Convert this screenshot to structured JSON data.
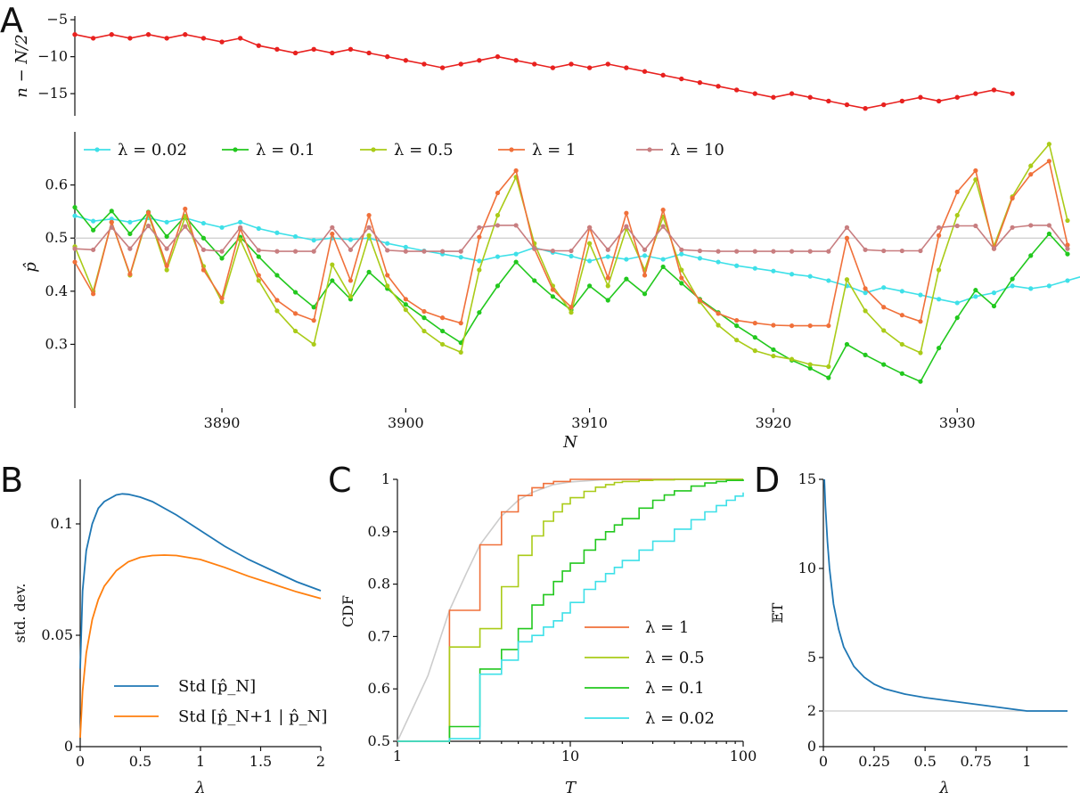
{
  "chart_data": [
    {
      "panel": "A",
      "type": "line",
      "title": "",
      "xlabel": "N",
      "ylabel": "n − N/2",
      "xlim": [
        3882,
        3936
      ],
      "ylim": [
        -18,
        -4.5
      ],
      "yticks": [
        -5,
        -10,
        -15
      ],
      "ytick_labels": [
        "−5",
        "−10",
        "−15"
      ],
      "series": [
        {
          "name": "n − N/2",
          "color": "#e8211f",
          "values": [
            -7,
            -7.5,
            -7,
            -7.5,
            -7,
            -7.5,
            -7,
            -7.5,
            -8,
            -7.5,
            -8.5,
            -9,
            -9.5,
            -9,
            -9.5,
            -9,
            -9.5,
            -10,
            -10.5,
            -11,
            -11.5,
            -11,
            -10.5,
            -10,
            -10.5,
            -11,
            -11.5,
            -11,
            -11.5,
            -11,
            -11.5,
            -12,
            -12.5,
            -13,
            -13.5,
            -14,
            -14.5,
            -15,
            -15.5,
            -15,
            -15.5,
            -16,
            -16.5,
            -17,
            -16.5,
            -16,
            -15.5,
            -16,
            -15.5,
            -15,
            -14.5,
            -15
          ]
        }
      ]
    },
    {
      "panel": "A",
      "type": "line",
      "xlabel": "N",
      "ylabel": "p̂",
      "xlim": [
        3882,
        3936
      ],
      "ylim": [
        0.18,
        0.7
      ],
      "xticks": [
        3890,
        3900,
        3910,
        3920,
        3930
      ],
      "xtick_labels": [
        "3890",
        "3900",
        "3910",
        "3920",
        "3930"
      ],
      "yticks": [
        0.3,
        0.4,
        0.5,
        0.6
      ],
      "ytick_labels": [
        "0.3",
        "0.4",
        "0.5",
        "0.6"
      ],
      "reference_line": 0.5,
      "legend": "top",
      "series": [
        {
          "name": "λ = 0.02",
          "color": "#3ee0e8",
          "values": [
            0.542,
            0.532,
            0.536,
            0.53,
            0.538,
            0.53,
            0.538,
            0.528,
            0.52,
            0.53,
            0.518,
            0.51,
            0.503,
            0.496,
            0.5,
            0.497,
            0.5,
            0.49,
            0.483,
            0.476,
            0.47,
            0.464,
            0.457,
            0.465,
            0.47,
            0.482,
            0.473,
            0.466,
            0.457,
            0.465,
            0.46,
            0.467,
            0.46,
            0.47,
            0.462,
            0.455,
            0.448,
            0.443,
            0.438,
            0.432,
            0.428,
            0.42,
            0.41,
            0.397,
            0.407,
            0.4,
            0.393,
            0.385,
            0.378,
            0.39,
            0.397,
            0.41,
            0.405,
            0.41,
            0.42,
            0.43,
            0.437,
            0.43
          ]
        },
        {
          "name": "λ = 0.1",
          "color": "#22c81e",
          "values": [
            0.558,
            0.515,
            0.551,
            0.508,
            0.549,
            0.503,
            0.541,
            0.5,
            0.462,
            0.502,
            0.465,
            0.43,
            0.398,
            0.37,
            0.42,
            0.385,
            0.436,
            0.405,
            0.375,
            0.35,
            0.325,
            0.303,
            0.36,
            0.41,
            0.455,
            0.42,
            0.39,
            0.365,
            0.41,
            0.383,
            0.423,
            0.395,
            0.446,
            0.415,
            0.385,
            0.36,
            0.335,
            0.313,
            0.29,
            0.27,
            0.255,
            0.237,
            0.3,
            0.28,
            0.262,
            0.245,
            0.23,
            0.293,
            0.35,
            0.402,
            0.372,
            0.423,
            0.467,
            0.508,
            0.47
          ]
        },
        {
          "name": "λ = 0.5",
          "color": "#aacb18",
          "values": [
            0.484,
            0.4,
            0.53,
            0.43,
            0.545,
            0.44,
            0.54,
            0.447,
            0.38,
            0.497,
            0.42,
            0.363,
            0.325,
            0.3,
            0.45,
            0.39,
            0.505,
            0.41,
            0.365,
            0.325,
            0.3,
            0.285,
            0.44,
            0.543,
            0.615,
            0.49,
            0.41,
            0.36,
            0.49,
            0.41,
            0.518,
            0.44,
            0.54,
            0.44,
            0.38,
            0.336,
            0.308,
            0.288,
            0.278,
            0.272,
            0.262,
            0.258,
            0.422,
            0.363,
            0.326,
            0.3,
            0.284,
            0.44,
            0.543,
            0.61,
            0.485,
            0.578,
            0.636,
            0.677,
            0.533
          ]
        },
        {
          "name": "λ = 1",
          "color": "#f0703a",
          "values": [
            0.455,
            0.395,
            0.53,
            0.432,
            0.548,
            0.448,
            0.555,
            0.44,
            0.387,
            0.518,
            0.43,
            0.383,
            0.358,
            0.345,
            0.508,
            0.42,
            0.543,
            0.43,
            0.385,
            0.362,
            0.35,
            0.34,
            0.502,
            0.585,
            0.627,
            0.48,
            0.403,
            0.37,
            0.52,
            0.425,
            0.547,
            0.43,
            0.553,
            0.425,
            0.383,
            0.358,
            0.345,
            0.34,
            0.336,
            0.335,
            0.335,
            0.335,
            0.5,
            0.405,
            0.37,
            0.355,
            0.343,
            0.505,
            0.587,
            0.627,
            0.48,
            0.575,
            0.62,
            0.645,
            0.487
          ]
        },
        {
          "name": "λ = 10",
          "color": "#c87e80",
          "values": [
            0.48,
            0.478,
            0.52,
            0.48,
            0.523,
            0.48,
            0.522,
            0.478,
            0.475,
            0.52,
            0.477,
            0.475,
            0.475,
            0.475,
            0.52,
            0.478,
            0.52,
            0.477,
            0.475,
            0.475,
            0.475,
            0.475,
            0.52,
            0.524,
            0.524,
            0.48,
            0.476,
            0.476,
            0.52,
            0.478,
            0.522,
            0.478,
            0.522,
            0.478,
            0.476,
            0.475,
            0.475,
            0.475,
            0.475,
            0.475,
            0.475,
            0.475,
            0.52,
            0.478,
            0.476,
            0.476,
            0.476,
            0.52,
            0.523,
            0.523,
            0.48,
            0.52,
            0.524,
            0.524,
            0.48
          ]
        }
      ]
    },
    {
      "panel": "B",
      "type": "line",
      "xlabel": "λ",
      "ylabel": "std. dev.",
      "xlim": [
        0,
        2
      ],
      "ylim": [
        0,
        0.12
      ],
      "xticks": [
        0,
        0.5,
        1,
        1.5,
        2
      ],
      "xtick_labels": [
        "0",
        "0.5",
        "1",
        "1.5",
        "2"
      ],
      "yticks": [
        0,
        0.05,
        0.1
      ],
      "ytick_labels": [
        "0",
        "0.05",
        "0.1"
      ],
      "legend": "lower-right",
      "series": [
        {
          "name": "Std [p̂_N]",
          "color": "#1f77b4",
          "x": [
            0,
            0.02,
            0.05,
            0.1,
            0.15,
            0.2,
            0.3,
            0.35,
            0.4,
            0.5,
            0.6,
            0.8,
            1.0,
            1.2,
            1.4,
            1.6,
            1.8,
            2.0
          ],
          "values": [
            0.035,
            0.07,
            0.088,
            0.1,
            0.107,
            0.11,
            0.113,
            0.1135,
            0.1133,
            0.112,
            0.11,
            0.104,
            0.097,
            0.09,
            0.084,
            0.079,
            0.074,
            0.07
          ]
        },
        {
          "name": "Std [p̂_N+1 | p̂_N]",
          "color": "#ff7f0e",
          "x": [
            0,
            0.02,
            0.05,
            0.1,
            0.15,
            0.2,
            0.3,
            0.4,
            0.5,
            0.6,
            0.7,
            0.8,
            1.0,
            1.2,
            1.4,
            1.6,
            1.8,
            2.0
          ],
          "values": [
            0.004,
            0.025,
            0.042,
            0.057,
            0.066,
            0.072,
            0.079,
            0.083,
            0.085,
            0.0858,
            0.086,
            0.0858,
            0.084,
            0.0805,
            0.0765,
            0.073,
            0.0695,
            0.0665
          ]
        }
      ]
    },
    {
      "panel": "C",
      "type": "line",
      "xlabel": "T",
      "ylabel": "CDF",
      "xscale": "log",
      "xlim": [
        1,
        100
      ],
      "ylim": [
        0.5,
        1
      ],
      "xticks": [
        1,
        10,
        100
      ],
      "xtick_labels": [
        "1",
        "10",
        "100"
      ],
      "yticks": [
        0.5,
        0.6,
        0.7,
        0.8,
        0.9,
        1
      ],
      "ytick_labels": [
        "0.5",
        "0.6",
        "0.7",
        "0.8",
        "0.9",
        "1"
      ],
      "legend": "lower-right",
      "reference_curve": {
        "x": [
          1,
          1.5,
          2,
          2.5,
          3,
          4,
          5,
          6,
          8,
          10,
          15,
          20,
          30,
          100
        ],
        "values": [
          0.5,
          0.625,
          0.75,
          0.82,
          0.875,
          0.93,
          0.96,
          0.975,
          0.99,
          0.995,
          0.999,
          1,
          1,
          1
        ]
      },
      "series": [
        {
          "name": "λ = 1",
          "color": "#f0703a",
          "x": [
            1,
            2,
            3,
            4,
            5,
            6,
            7,
            8,
            10,
            100
          ],
          "values": [
            0.5,
            0.75,
            0.875,
            0.938,
            0.969,
            0.984,
            0.992,
            0.996,
            1,
            1
          ]
        },
        {
          "name": "λ = 0.5",
          "color": "#aacb18",
          "x": [
            1,
            2,
            3,
            4,
            5,
            6,
            7,
            8,
            9,
            10,
            12,
            14,
            16,
            18,
            20,
            25,
            30,
            40,
            100
          ],
          "values": [
            0.5,
            0.68,
            0.715,
            0.795,
            0.855,
            0.892,
            0.92,
            0.938,
            0.953,
            0.965,
            0.977,
            0.985,
            0.99,
            0.994,
            0.996,
            0.998,
            0.999,
            1,
            1
          ]
        },
        {
          "name": "λ = 0.1",
          "color": "#22c81e",
          "x": [
            1,
            2,
            3,
            4,
            5,
            6,
            7,
            8,
            9,
            10,
            12,
            14,
            16,
            18,
            20,
            25,
            30,
            35,
            40,
            50,
            60,
            70,
            80,
            100
          ],
          "values": [
            0.5,
            0.528,
            0.638,
            0.675,
            0.715,
            0.76,
            0.78,
            0.805,
            0.825,
            0.84,
            0.865,
            0.885,
            0.9,
            0.913,
            0.925,
            0.945,
            0.96,
            0.97,
            0.978,
            0.987,
            0.993,
            0.996,
            0.998,
            1
          ]
        },
        {
          "name": "λ = 0.02",
          "color": "#3ee0e8",
          "x": [
            1,
            2,
            3,
            4,
            5,
            6,
            7,
            8,
            9,
            10,
            12,
            14,
            16,
            18,
            20,
            25,
            30,
            40,
            50,
            60,
            70,
            80,
            90,
            100
          ],
          "values": [
            0.5,
            0.505,
            0.628,
            0.655,
            0.69,
            0.702,
            0.718,
            0.73,
            0.745,
            0.765,
            0.79,
            0.805,
            0.82,
            0.832,
            0.845,
            0.865,
            0.882,
            0.905,
            0.923,
            0.938,
            0.95,
            0.96,
            0.968,
            0.975
          ]
        }
      ]
    },
    {
      "panel": "D",
      "type": "line",
      "xlabel": "λ",
      "ylabel": "𝔼T",
      "xlim": [
        0,
        1.2
      ],
      "ylim": [
        0,
        15
      ],
      "xticks": [
        0,
        0.25,
        0.5,
        0.75,
        1
      ],
      "xtick_labels": [
        "0",
        "0.25",
        "0.5",
        "0.75",
        "1"
      ],
      "yticks": [
        0,
        2,
        5,
        10,
        15
      ],
      "ytick_labels": [
        "0",
        "2",
        "5",
        "10",
        "15"
      ],
      "reference_line": 2,
      "series": [
        {
          "name": "𝔼T",
          "color": "#1f77b4",
          "x": [
            0.005,
            0.01,
            0.02,
            0.03,
            0.05,
            0.075,
            0.1,
            0.15,
            0.2,
            0.25,
            0.3,
            0.4,
            0.5,
            0.6,
            0.7,
            0.8,
            0.9,
            1.0,
            1.1,
            1.2
          ],
          "values": [
            15,
            13.5,
            11.5,
            10,
            8,
            6.6,
            5.6,
            4.5,
            3.9,
            3.5,
            3.25,
            2.95,
            2.75,
            2.6,
            2.45,
            2.3,
            2.15,
            2,
            2,
            2
          ]
        }
      ]
    }
  ],
  "panels": {
    "a": "A",
    "b": "B",
    "c": "C",
    "d": "D"
  },
  "legend_b": {
    "s1": "Std [p̂_N]",
    "s2": "Std [p̂_N+1 | p̂_N]"
  }
}
